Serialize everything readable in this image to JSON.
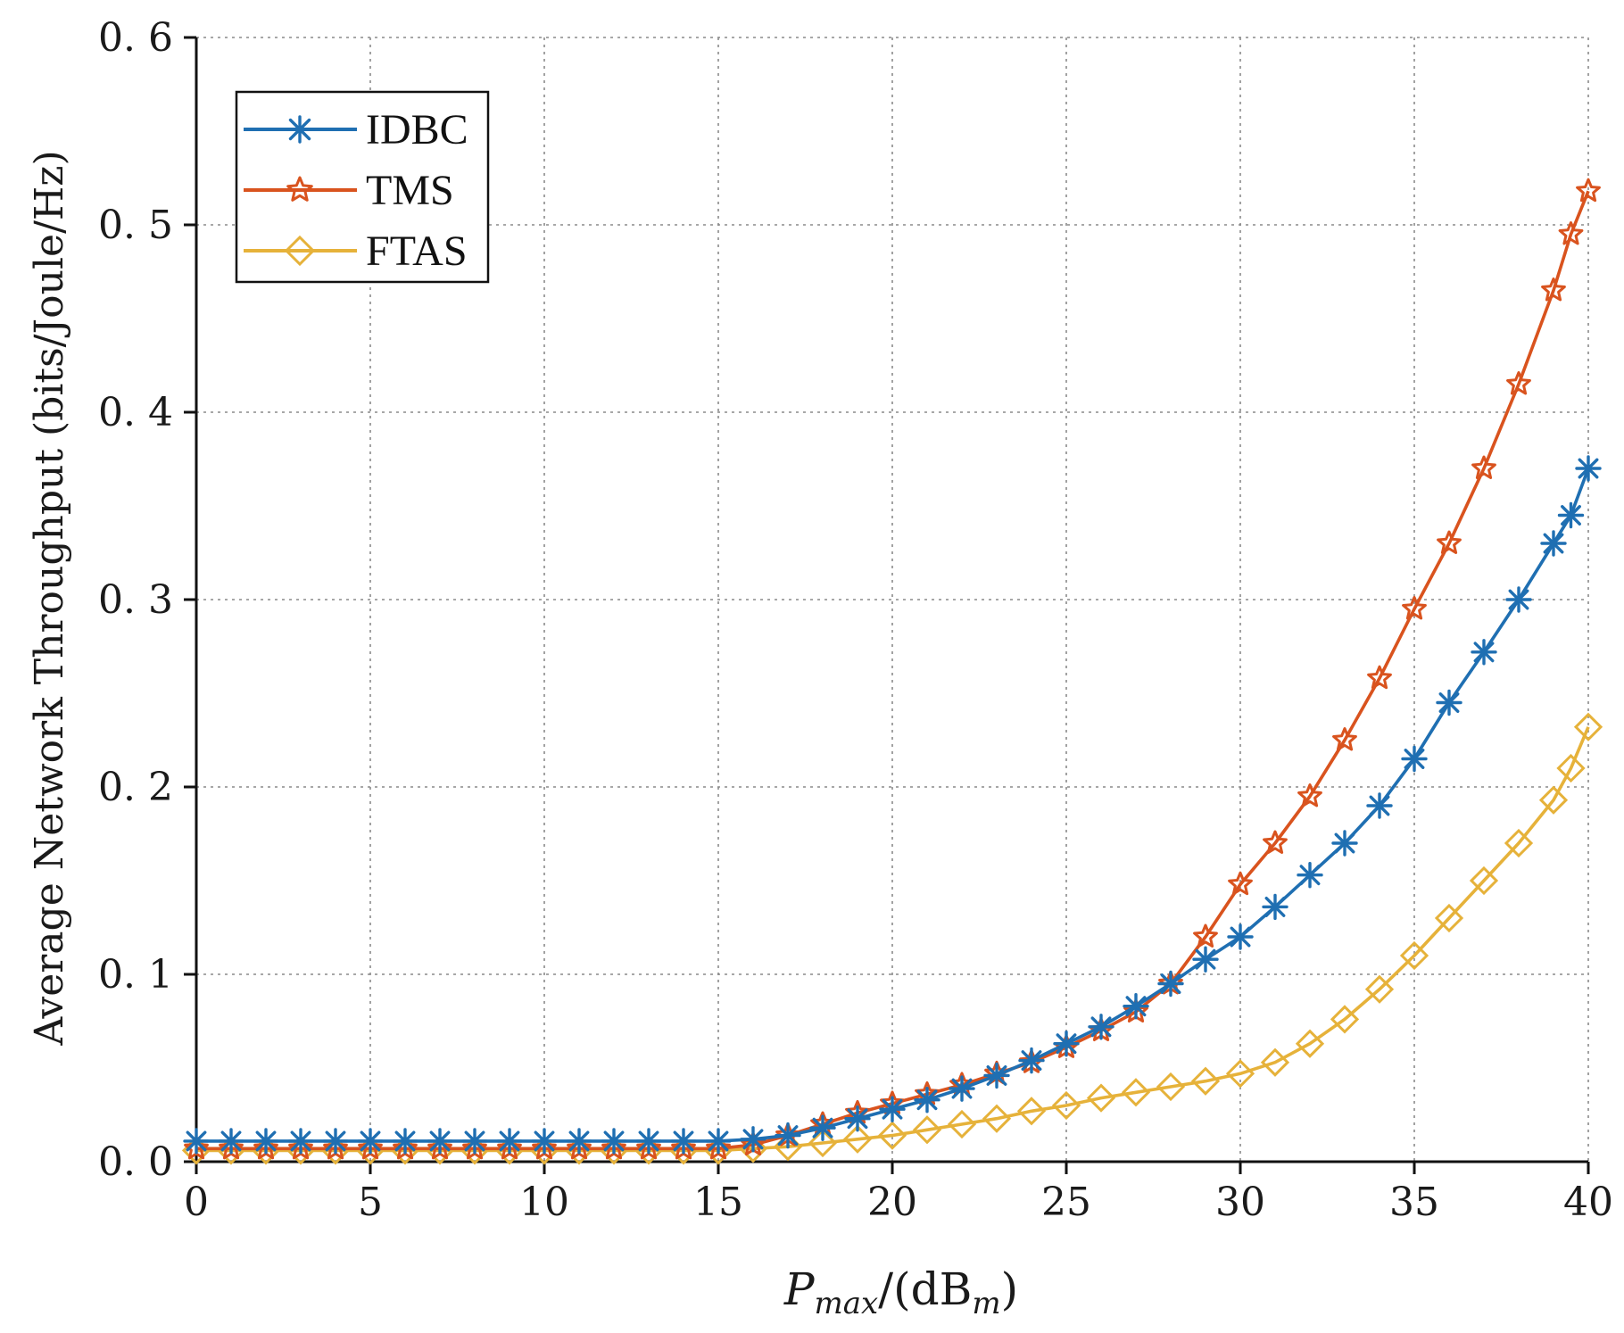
{
  "chart_data": {
    "type": "line",
    "title": "",
    "xlabel": "P_max/(dB_m)",
    "xlabel_parts": {
      "main": "P",
      "sub": "max",
      "rest": "/(dB",
      "unit_sub": "m",
      "close": ")"
    },
    "ylabel": "Average Network Throughput (bits/Joule/Hz)",
    "xlim": [
      0,
      40
    ],
    "ylim": [
      0,
      0.6
    ],
    "xticks": [
      0,
      5,
      10,
      15,
      20,
      25,
      30,
      35,
      40
    ],
    "xtick_labels": [
      "0",
      "5",
      "10",
      "15",
      "20",
      "25",
      "30",
      "35",
      "40"
    ],
    "yticks": [
      0.0,
      0.1,
      0.2,
      0.3,
      0.4,
      0.5,
      0.6
    ],
    "ytick_labels": [
      "0. 0",
      "0. 1",
      "0. 2",
      "0. 3",
      "0. 4",
      "0. 5",
      "0. 6"
    ],
    "grid": true,
    "legend_position": "top-left",
    "series": [
      {
        "name": "IDBC",
        "color": "#1f6fb2",
        "marker": "asterisk",
        "x": [
          0,
          1,
          2,
          3,
          4,
          5,
          6,
          7,
          8,
          9,
          10,
          11,
          12,
          13,
          14,
          15,
          16,
          17,
          18,
          19,
          20,
          21,
          22,
          23,
          24,
          25,
          26,
          27,
          28,
          29,
          30,
          31,
          32,
          33,
          34,
          35,
          36,
          37,
          38,
          39,
          39.5,
          40
        ],
        "y": [
          0.011,
          0.011,
          0.011,
          0.011,
          0.011,
          0.011,
          0.011,
          0.011,
          0.011,
          0.011,
          0.011,
          0.011,
          0.011,
          0.011,
          0.011,
          0.011,
          0.012,
          0.014,
          0.018,
          0.023,
          0.028,
          0.033,
          0.039,
          0.046,
          0.054,
          0.063,
          0.072,
          0.083,
          0.095,
          0.108,
          0.12,
          0.136,
          0.153,
          0.17,
          0.19,
          0.215,
          0.245,
          0.272,
          0.3,
          0.33,
          0.345,
          0.37
        ]
      },
      {
        "name": "TMS",
        "color": "#d9531e",
        "marker": "star",
        "x": [
          0,
          1,
          2,
          3,
          4,
          5,
          6,
          7,
          8,
          9,
          10,
          11,
          12,
          13,
          14,
          15,
          16,
          17,
          18,
          19,
          20,
          21,
          22,
          23,
          24,
          25,
          26,
          27,
          28,
          29,
          30,
          31,
          32,
          33,
          34,
          35,
          36,
          37,
          38,
          39,
          39.5,
          40
        ],
        "y": [
          0.007,
          0.007,
          0.007,
          0.007,
          0.007,
          0.007,
          0.007,
          0.007,
          0.007,
          0.007,
          0.007,
          0.007,
          0.007,
          0.007,
          0.007,
          0.007,
          0.009,
          0.014,
          0.02,
          0.026,
          0.031,
          0.036,
          0.041,
          0.047,
          0.053,
          0.061,
          0.07,
          0.08,
          0.095,
          0.12,
          0.148,
          0.17,
          0.195,
          0.225,
          0.258,
          0.295,
          0.33,
          0.37,
          0.415,
          0.465,
          0.495,
          0.518
        ]
      },
      {
        "name": "FTAS",
        "color": "#e6b23a",
        "marker": "diamond",
        "x": [
          0,
          1,
          2,
          3,
          4,
          5,
          6,
          7,
          8,
          9,
          10,
          11,
          12,
          13,
          14,
          15,
          16,
          17,
          18,
          19,
          20,
          21,
          22,
          23,
          24,
          25,
          26,
          27,
          28,
          29,
          30,
          31,
          32,
          33,
          34,
          35,
          36,
          37,
          38,
          39,
          39.5,
          40
        ],
        "y": [
          0.006,
          0.006,
          0.006,
          0.006,
          0.006,
          0.006,
          0.006,
          0.006,
          0.006,
          0.006,
          0.006,
          0.006,
          0.006,
          0.006,
          0.006,
          0.006,
          0.007,
          0.008,
          0.01,
          0.012,
          0.014,
          0.017,
          0.02,
          0.023,
          0.027,
          0.03,
          0.034,
          0.037,
          0.04,
          0.043,
          0.047,
          0.053,
          0.063,
          0.076,
          0.092,
          0.11,
          0.13,
          0.15,
          0.17,
          0.193,
          0.21,
          0.232
        ]
      }
    ]
  }
}
